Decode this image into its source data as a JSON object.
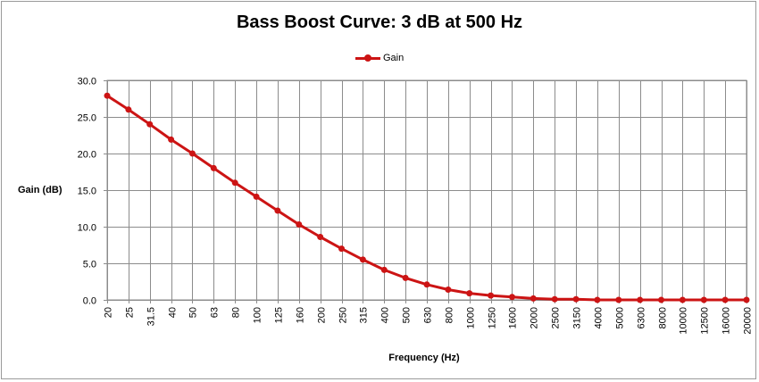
{
  "chart_data": {
    "type": "line",
    "title": "Bass Boost Curve: 3 dB at 500 Hz",
    "xlabel": "Frequency (Hz)",
    "ylabel": "Gain (dB)",
    "categories": [
      "20",
      "25",
      "31.5",
      "40",
      "50",
      "63",
      "80",
      "100",
      "125",
      "160",
      "200",
      "250",
      "315",
      "400",
      "500",
      "630",
      "800",
      "1000",
      "1250",
      "1600",
      "2000",
      "2500",
      "3150",
      "4000",
      "5000",
      "6300",
      "8000",
      "10000",
      "12500",
      "16000",
      "20000"
    ],
    "series": [
      {
        "name": "Gain",
        "color": "#cc1414",
        "values": [
          27.9,
          26.0,
          24.0,
          21.9,
          20.0,
          18.0,
          16.0,
          14.1,
          12.2,
          10.3,
          8.6,
          7.0,
          5.5,
          4.1,
          3.0,
          2.1,
          1.4,
          0.9,
          0.6,
          0.4,
          0.2,
          0.1,
          0.1,
          0.0,
          0.0,
          0.0,
          0.0,
          0.0,
          0.0,
          0.0,
          0.0
        ]
      }
    ],
    "ylim": [
      0,
      30
    ],
    "yticks": [
      "0.0",
      "5.0",
      "10.0",
      "15.0",
      "20.0",
      "25.0",
      "30.0"
    ],
    "grid": true,
    "legend_position": "top"
  }
}
